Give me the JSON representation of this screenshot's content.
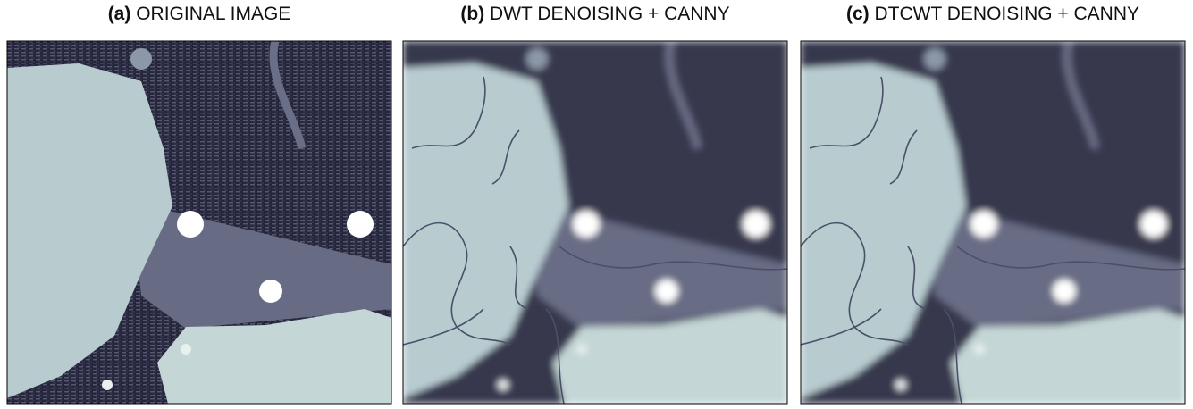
{
  "panels": [
    {
      "label": "(a)",
      "title": "ORIGINAL IMAGE"
    },
    {
      "label": "(b)",
      "title": "DWT DENOISING + CANNY"
    },
    {
      "label": "(c)",
      "title": "DTCWT DENOISING + CANNY"
    }
  ]
}
